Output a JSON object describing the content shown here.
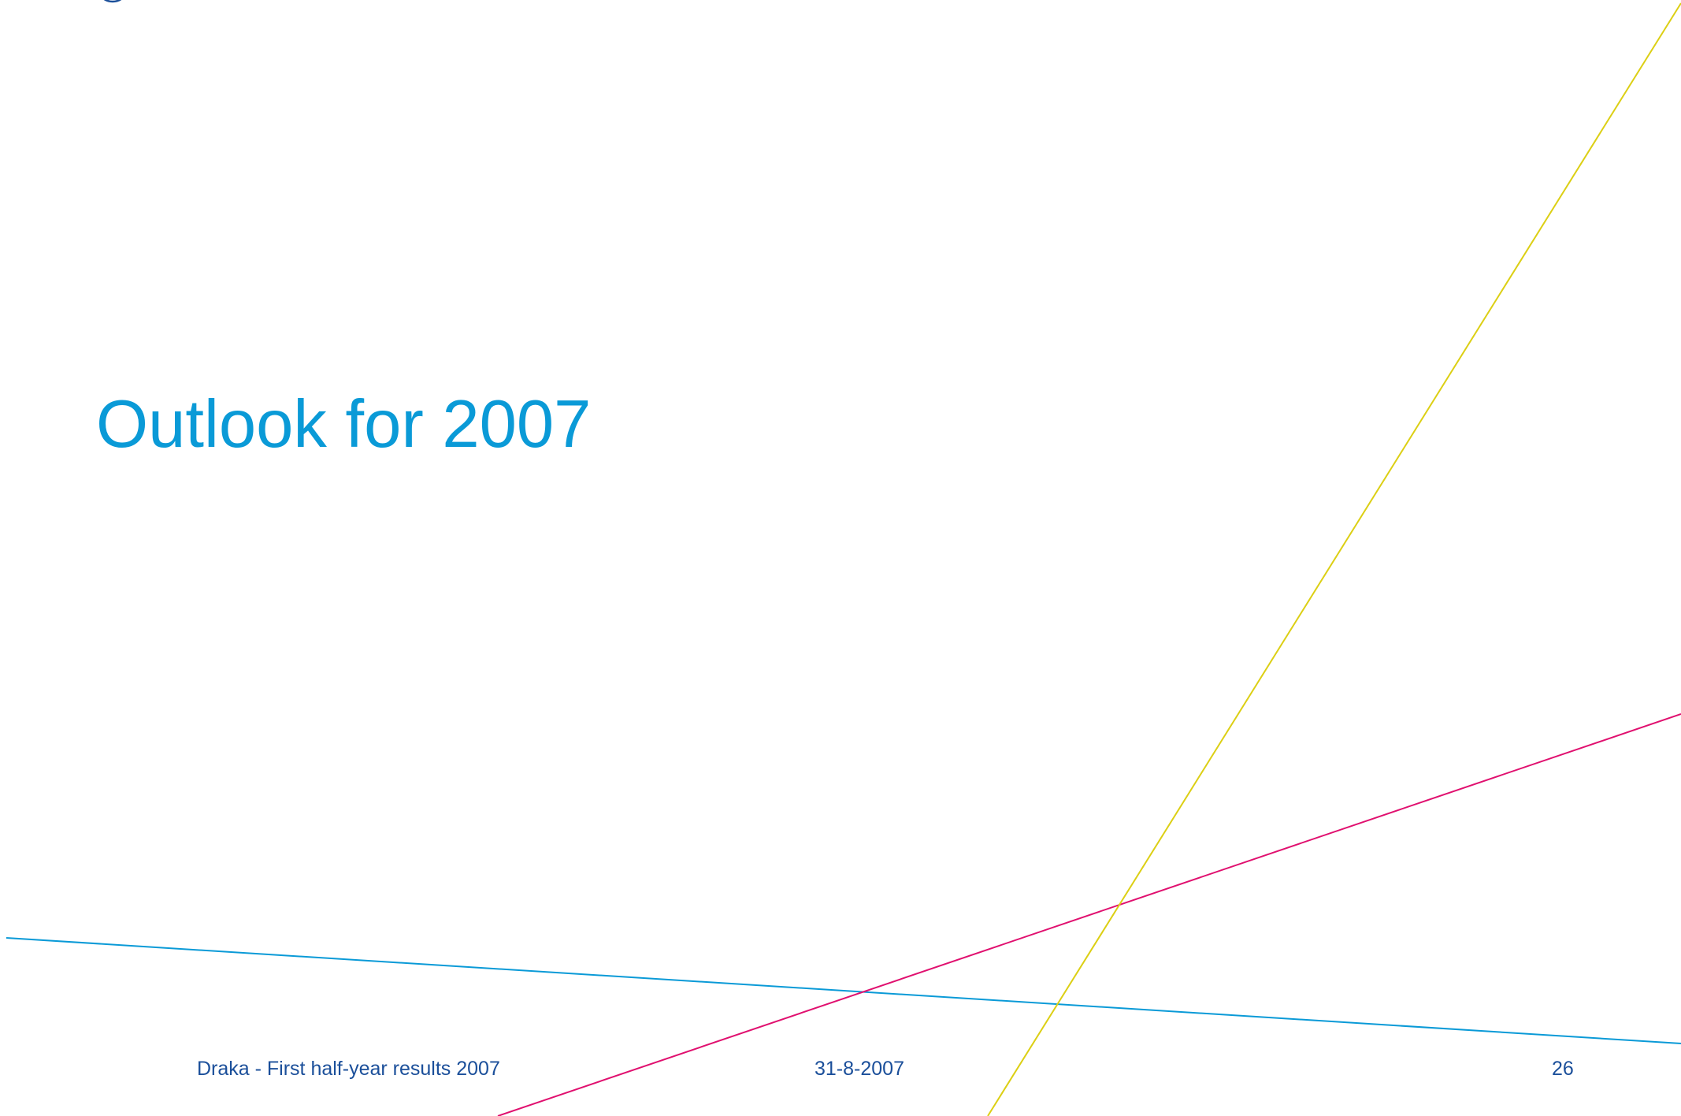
{
  "slide": {
    "title": "Outlook for 2007",
    "footer": {
      "presentation": "Draka - First half-year results 2007",
      "date": "31-8-2007",
      "page_number": "26"
    }
  },
  "colors": {
    "title": "#0a9ad7",
    "footer_text": "#1b4f9a",
    "line_blue": "#0a9ad7",
    "line_magenta": "#e0106f",
    "line_yellow": "#dccf14",
    "logo": "#1b4f9a"
  },
  "icons": {
    "logo": "globe-logo-icon"
  }
}
